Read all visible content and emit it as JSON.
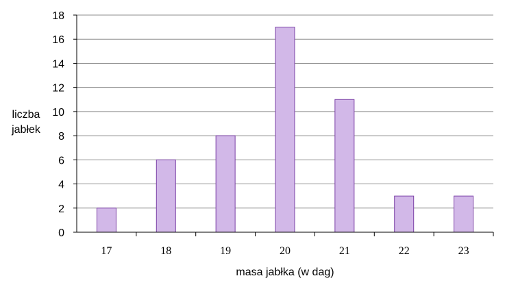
{
  "chart_data": {
    "type": "bar",
    "categories": [
      "17",
      "18",
      "19",
      "20",
      "21",
      "22",
      "23"
    ],
    "values": [
      2,
      6,
      8,
      17,
      11,
      3,
      3
    ],
    "title": "",
    "xlabel": "masa jabłka (w dag)",
    "ylabel": [
      "liczba",
      "jabłek"
    ],
    "ylim": [
      0,
      18
    ],
    "yticks": [
      0,
      2,
      4,
      6,
      8,
      10,
      12,
      14,
      16,
      18
    ],
    "grid": "horizontal",
    "legend": "none",
    "colors": {
      "bar_fill": "#d2b8e8",
      "bar_stroke": "#7a3fa6",
      "grid": "#8c8c8c",
      "axis": "#000000"
    }
  }
}
